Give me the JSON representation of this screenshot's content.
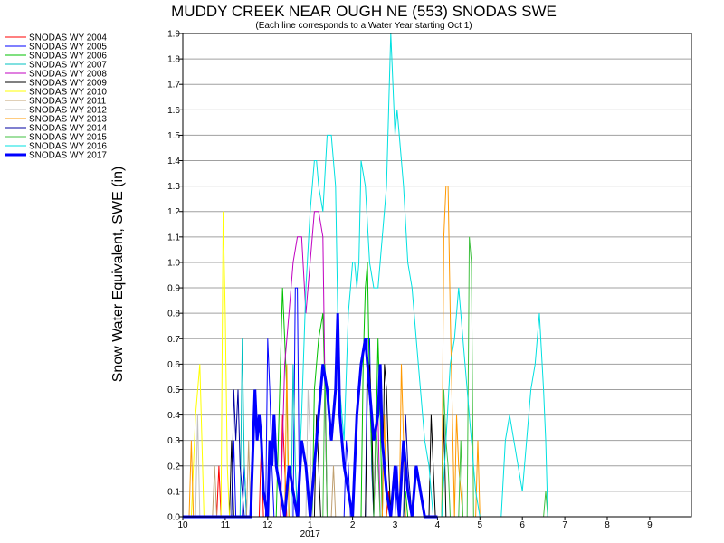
{
  "chart_data": {
    "type": "line",
    "title": "MUDDY CREEK NEAR OUGH NE (553) SNODAS SWE",
    "subtitle": "(Each line corresponds to a Water Year starting Oct 1)",
    "ylabel": "Snow Water Equivalent, SWE (in)",
    "xlabel": "",
    "x_ticks": [
      "10",
      "11",
      "12",
      "1",
      "2",
      "3",
      "4",
      "5",
      "6",
      "7",
      "8",
      "9"
    ],
    "x_year_label": "2017",
    "x_year_under_tick": "1",
    "ylim": [
      0,
      1.9
    ],
    "y_ticks": [
      "0.0",
      "0.1",
      "0.2",
      "0.3",
      "0.4",
      "0.5",
      "0.6",
      "0.7",
      "0.8",
      "0.9",
      "1.0",
      "1.1",
      "1.2",
      "1.3",
      "1.4",
      "1.5",
      "1.6",
      "1.7",
      "1.8",
      "1.9"
    ],
    "grid": "horizontal",
    "legend_placement": "left",
    "x_unit": "month of water year (Oct 1 = 0)",
    "series": [
      {
        "name": "SNODAS WY 2004",
        "color": "#ff0000",
        "width": 1,
        "x": [
          0,
          0.8,
          0.85,
          0.9,
          1.8,
          1.85,
          1.9,
          2.3,
          2.35,
          2.45,
          4.8,
          4.85,
          4.9,
          6
        ],
        "y": [
          0,
          0,
          0.2,
          0,
          0,
          0.3,
          0,
          0,
          0.4,
          0,
          0,
          0.1,
          0,
          0
        ]
      },
      {
        "name": "SNODAS WY 2005",
        "color": "#0000ff",
        "width": 1,
        "x": [
          0,
          1.15,
          1.2,
          1.25,
          1.4,
          1.45,
          1.5,
          1.95,
          2,
          2.05,
          2.1,
          2.15,
          2.6,
          2.65,
          2.7,
          2.75,
          3.8,
          3.85,
          3.9,
          3.95,
          4.3,
          4.35,
          4.4,
          4.45,
          4.5,
          5,
          5.05,
          5.1,
          6
        ],
        "y": [
          0,
          0,
          0.3,
          0,
          0,
          0.2,
          0,
          0,
          0.7,
          0.5,
          0.2,
          0,
          0,
          0.9,
          0.9,
          0,
          0,
          0.3,
          0.2,
          0,
          0,
          0.7,
          0.7,
          0.2,
          0,
          0,
          0.2,
          0,
          0
        ]
      },
      {
        "name": "SNODAS WY 2006",
        "color": "#00c000",
        "width": 1,
        "x": [
          0,
          2.2,
          2.3,
          2.35,
          2.45,
          2.5,
          3.05,
          3.1,
          3.2,
          3.3,
          3.35,
          3.4,
          4.2,
          4.25,
          4.3,
          4.35,
          4.4,
          4.5,
          4.55,
          4.6,
          4.65,
          4.7,
          5.2,
          5.25,
          5.3,
          6
        ],
        "y": [
          0,
          0,
          0.6,
          0.9,
          0.5,
          0,
          0,
          0.5,
          0.7,
          0.8,
          0.5,
          0,
          0,
          0.6,
          0.9,
          1.0,
          0.5,
          0,
          0.3,
          0.7,
          0.4,
          0,
          0,
          0.1,
          0,
          0
        ]
      },
      {
        "name": "SNODAS WY 2007",
        "color": "#00c0c0",
        "width": 1,
        "x": [
          0,
          1.35,
          1.4,
          1.45,
          1.5,
          2.55,
          2.6,
          2.65,
          2.7,
          6
        ],
        "y": [
          0,
          0,
          0.7,
          0.2,
          0,
          0,
          0.6,
          0.2,
          0,
          0
        ]
      },
      {
        "name": "SNODAS WY 2008",
        "color": "#c000c0",
        "width": 1,
        "x": [
          0,
          2.3,
          2.4,
          2.5,
          2.6,
          2.7,
          2.8,
          2.9,
          3,
          3.1,
          3.2,
          3.3,
          3.35,
          3.4,
          4.5,
          4.55,
          4.6,
          4.65,
          6
        ],
        "y": [
          0,
          0,
          0.6,
          0.8,
          1.0,
          1.1,
          1.1,
          0.8,
          1.0,
          1.2,
          1.2,
          1.1,
          0.5,
          0,
          0,
          0.3,
          0.4,
          0,
          0
        ]
      },
      {
        "name": "SNODAS WY 2009",
        "color": "#000000",
        "width": 1,
        "x": [
          0,
          1.1,
          1.15,
          1.2,
          3.1,
          3.15,
          3.2,
          3.25,
          4.3,
          4.35,
          4.4,
          4.45,
          4.5,
          4.7,
          4.75,
          4.8,
          4.85,
          4.9,
          5.8,
          5.85,
          5.9,
          5.95,
          6.1,
          6.15,
          6.2,
          7
        ],
        "y": [
          0,
          0,
          0.3,
          0,
          0,
          0.4,
          0.2,
          0,
          0,
          0.5,
          0.6,
          0.4,
          0,
          0,
          0.6,
          0.5,
          0.2,
          0,
          0,
          0.4,
          0.2,
          0,
          0,
          0.4,
          0,
          0
        ]
      },
      {
        "name": "SNODAS WY 2010",
        "color": "#ffff00",
        "width": 1,
        "x": [
          0,
          0.2,
          0.3,
          0.4,
          0.45,
          0.5,
          0.9,
          0.95,
          1,
          1.05,
          1.1,
          6
        ],
        "y": [
          0,
          0,
          0.4,
          0.6,
          0.3,
          0,
          0,
          1.2,
          0.8,
          0.2,
          0,
          0
        ]
      },
      {
        "name": "SNODAS WY 2011",
        "color": "#c0a070",
        "width": 1,
        "x": [
          0,
          0.7,
          0.75,
          0.8,
          1.5,
          1.55,
          1.6,
          3.5,
          3.55,
          3.6,
          6
        ],
        "y": [
          0,
          0,
          0.2,
          0,
          0,
          0.3,
          0,
          0,
          0.2,
          0,
          0
        ]
      },
      {
        "name": "SNODAS WY 2012",
        "color": "#c0c0c0",
        "width": 1,
        "x": [
          0,
          0.3,
          0.35,
          0.4,
          2.9,
          2.95,
          3,
          3.05,
          6
        ],
        "y": [
          0,
          0,
          0.4,
          0,
          0,
          0.5,
          0.3,
          0,
          0
        ]
      },
      {
        "name": "SNODAS WY 2013",
        "color": "#ff9900",
        "width": 1,
        "x": [
          0,
          0.15,
          0.2,
          0.25,
          2.4,
          2.45,
          2.5,
          4.7,
          4.75,
          4.8,
          5.1,
          5.15,
          5.2,
          5.25,
          6.1,
          6.15,
          6.2,
          6.25,
          6.3,
          6.4,
          6.45,
          6.5,
          6.55,
          6.6,
          6.9,
          6.95,
          7
        ],
        "y": [
          0,
          0,
          0.3,
          0,
          0,
          0.6,
          0,
          0,
          0.4,
          0,
          0,
          0.6,
          0.3,
          0,
          0,
          1.1,
          1.3,
          1.3,
          0.8,
          0,
          0.4,
          0.2,
          0.1,
          0,
          0,
          0.3,
          0
        ]
      },
      {
        "name": "SNODAS WY 2014",
        "color": "#0000a0",
        "width": 1,
        "x": [
          0,
          1.15,
          1.2,
          1.25,
          1.3,
          1.35,
          1.4,
          1.45,
          5.2,
          5.25,
          5.3,
          5.35,
          5.4,
          6
        ],
        "y": [
          0,
          0,
          0.5,
          0.3,
          0.5,
          0.2,
          0.1,
          0,
          0,
          0.4,
          0.2,
          0.1,
          0,
          0
        ]
      },
      {
        "name": "SNODAS WY 2015",
        "color": "#40c040",
        "width": 1,
        "x": [
          0,
          3.3,
          3.35,
          3.4,
          4.5,
          4.55,
          4.6,
          4.65,
          6.1,
          6.15,
          6.2,
          6.25,
          6.3,
          6.5,
          6.55,
          6.6,
          6.7,
          6.75,
          6.8,
          6.85,
          8.5,
          8.55,
          8.6,
          9
        ],
        "y": [
          0,
          0,
          0.6,
          0,
          0,
          0.4,
          0.2,
          0,
          0,
          0.5,
          0.3,
          0.2,
          0,
          0,
          0.3,
          0,
          0,
          1.1,
          1.0,
          0,
          0,
          0.1,
          0,
          0
        ]
      },
      {
        "name": "SNODAS WY 2016",
        "color": "#00e0e0",
        "width": 1,
        "x": [
          0,
          2.7,
          2.8,
          2.9,
          3,
          3.1,
          3.15,
          3.2,
          3.3,
          3.4,
          3.5,
          3.6,
          3.65,
          3.7,
          3.8,
          3.9,
          3.95,
          4,
          4.05,
          4.1,
          4.15,
          4.2,
          4.3,
          4.4,
          4.5,
          4.6,
          4.7,
          4.8,
          4.9,
          5.0,
          5.05,
          5.1,
          5.2,
          5.3,
          5.4,
          5.5,
          5.6,
          5.7,
          5.8,
          5.9,
          6.1,
          6.2,
          6.3,
          6.4,
          6.5,
          6.6,
          6.7,
          6.8,
          6.9,
          7,
          7.5,
          7.6,
          7.7,
          7.8,
          7.9,
          8,
          8.1,
          8.2,
          8.3,
          8.4,
          8.5,
          8.55,
          8.6,
          9
        ],
        "y": [
          0,
          0,
          0.4,
          0.9,
          1.2,
          1.4,
          1.4,
          1.3,
          1.2,
          1.5,
          1.5,
          1.3,
          0.8,
          0.5,
          0.3,
          0.8,
          0.9,
          1.0,
          1.0,
          0.9,
          1.0,
          1.4,
          1.3,
          1.0,
          0.9,
          0.9,
          1.1,
          1.3,
          1.9,
          1.5,
          1.6,
          1.5,
          1.3,
          1.0,
          0.9,
          0.7,
          0.5,
          0.3,
          0.2,
          0,
          0,
          0.3,
          0.6,
          0.7,
          0.9,
          0.7,
          0.5,
          0.3,
          0.1,
          0,
          0,
          0.3,
          0.4,
          0.3,
          0.2,
          0.1,
          0.3,
          0.5,
          0.6,
          0.8,
          0.5,
          0.3,
          0,
          0
        ]
      },
      {
        "name": "SNODAS WY 2017",
        "color": "#0000ff",
        "width": 3,
        "x": [
          0,
          1.6,
          1.7,
          1.75,
          1.8,
          1.85,
          1.9,
          2.0,
          2.05,
          2.1,
          2.15,
          2.2,
          2.3,
          2.4,
          2.5,
          2.6,
          2.7,
          2.8,
          2.9,
          3.0,
          3.1,
          3.2,
          3.3,
          3.4,
          3.5,
          3.6,
          3.65,
          3.7,
          3.8,
          3.9,
          4.0,
          4.1,
          4.2,
          4.3,
          4.4,
          4.5,
          4.6,
          4.65,
          4.7,
          4.8,
          4.9,
          5.0,
          5.1,
          5.2,
          5.3,
          5.4,
          5.5,
          5.6,
          5.7,
          5.8,
          5.9,
          6
        ],
        "y": [
          0,
          0,
          0.5,
          0.3,
          0.4,
          0.3,
          0.1,
          0,
          0.3,
          0.2,
          0.4,
          0.2,
          0.1,
          0,
          0.2,
          0.1,
          0,
          0.3,
          0.2,
          0,
          0.2,
          0.4,
          0.6,
          0.5,
          0.3,
          0.5,
          0.8,
          0.4,
          0.2,
          0.1,
          0,
          0.4,
          0.6,
          0.7,
          0.5,
          0.3,
          0.4,
          0.6,
          0.3,
          0.1,
          0,
          0.2,
          0,
          0.3,
          0.1,
          0,
          0.2,
          0.1,
          0,
          0,
          0,
          0
        ]
      }
    ]
  }
}
